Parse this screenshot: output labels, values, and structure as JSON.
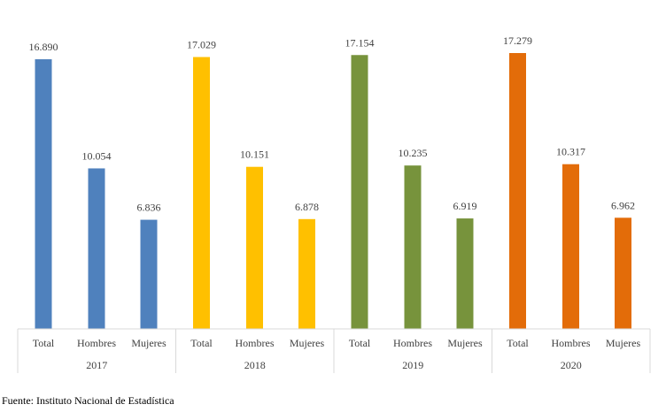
{
  "chart_data": {
    "type": "bar",
    "groups": [
      {
        "label": "2017",
        "color": "#4F81BD",
        "bars": [
          {
            "category": "Total",
            "value": 16890,
            "label": "16.890"
          },
          {
            "category": "Hombres",
            "value": 10054,
            "label": "10.054"
          },
          {
            "category": "Mujeres",
            "value": 6836,
            "label": "6.836"
          }
        ]
      },
      {
        "label": "2018",
        "color": "#FFC000",
        "bars": [
          {
            "category": "Total",
            "value": 17029,
            "label": "17.029"
          },
          {
            "category": "Hombres",
            "value": 10151,
            "label": "10.151"
          },
          {
            "category": "Mujeres",
            "value": 6878,
            "label": "6.878"
          }
        ]
      },
      {
        "label": "2019",
        "color": "#77933C",
        "bars": [
          {
            "category": "Total",
            "value": 17154,
            "label": "17.154"
          },
          {
            "category": "Hombres",
            "value": 10235,
            "label": "10.235"
          },
          {
            "category": "Mujeres",
            "value": 6919,
            "label": "6.919"
          }
        ]
      },
      {
        "label": "2020",
        "color": "#E36C09",
        "bars": [
          {
            "category": "Total",
            "value": 17279,
            "label": "17.279"
          },
          {
            "category": "Hombres",
            "value": 10317,
            "label": "10.317"
          },
          {
            "category": "Mujeres",
            "value": 6962,
            "label": "6.962"
          }
        ]
      }
    ],
    "ylim": [
      0,
      17279
    ],
    "grid": false,
    "legend": "none"
  },
  "source": "Fuente: Instituto Nacional de Estadística"
}
